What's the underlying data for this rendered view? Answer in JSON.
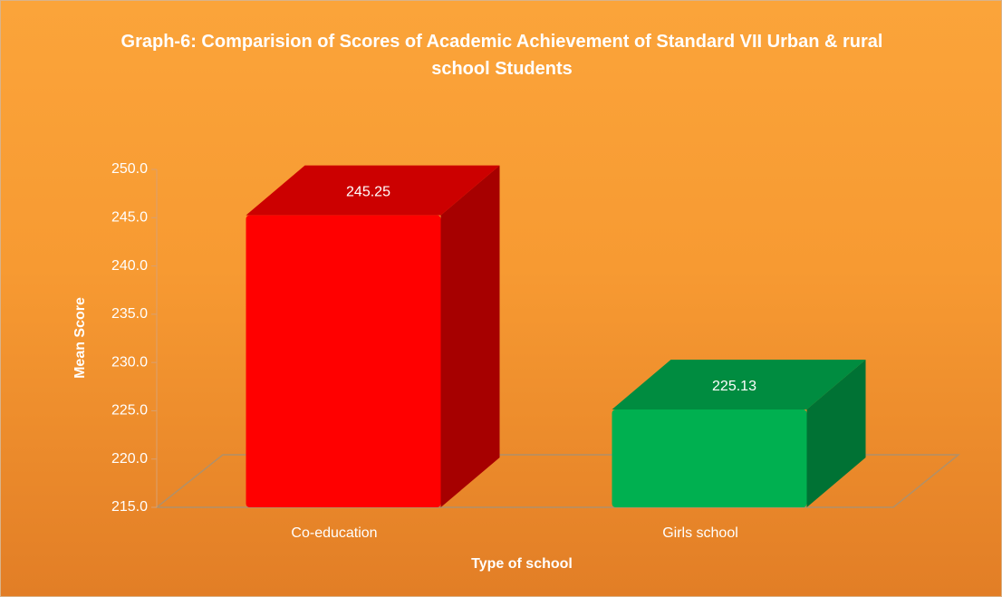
{
  "chart_data": {
    "type": "bar3d",
    "title": "Graph-6: Comparision of Scores of Academic Achievement  of Standard VII Urban & rural school Students",
    "x_label": "Type of school",
    "y_label": "Mean Score",
    "categories": [
      "Co-education",
      "Girls school"
    ],
    "values": [
      245.25,
      225.13
    ],
    "colors": [
      "#ff0000",
      "#00b050"
    ],
    "ylim": [
      215,
      250
    ],
    "yticks": [
      {
        "value": 215,
        "label": "215.0"
      },
      {
        "value": 220,
        "label": "220.0"
      },
      {
        "value": 225,
        "label": "225.0"
      },
      {
        "value": 230,
        "label": "230.0"
      },
      {
        "value": 235,
        "label": "235.0"
      },
      {
        "value": 240,
        "label": "240.0"
      },
      {
        "value": 245,
        "label": "245.0"
      },
      {
        "value": 250,
        "label": "250.0"
      }
    ]
  }
}
